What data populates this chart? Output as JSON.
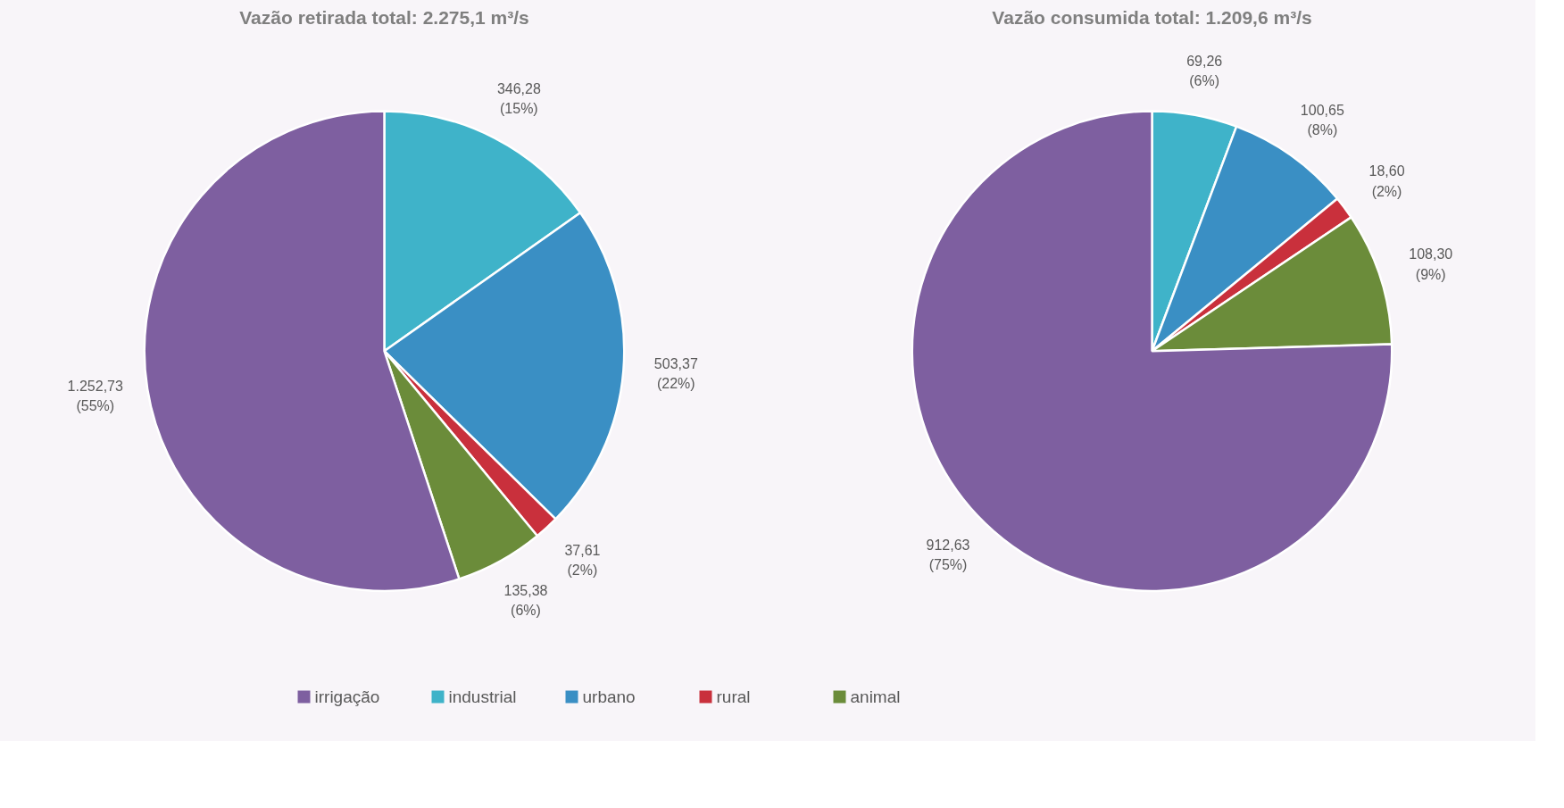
{
  "chart_data": [
    {
      "type": "pie",
      "title": "Vazão retirada total: 2.275,1 m³/s",
      "categories": [
        "irrigação",
        "industrial",
        "urbano",
        "rural",
        "animal"
      ],
      "values": [
        1252.73,
        346.28,
        503.37,
        37.61,
        135.38
      ],
      "value_labels": [
        "1.252,73\n(55%)",
        "346,28\n(15%)",
        "503,37\n(22%)",
        "37,61\n(2%)",
        "135,38\n(6%)"
      ],
      "colors": [
        "#7e5fa0",
        "#3fb3c9",
        "#3a8fc4",
        "#c9303c",
        "#6b8c3a"
      ],
      "legend": "bottom"
    },
    {
      "type": "pie",
      "title": "Vazão consumida total: 1.209,6 m³/s",
      "categories": [
        null,
        null,
        null,
        null,
        null
      ],
      "values": [
        912.63,
        69.26,
        100.65,
        18.6,
        108.3
      ],
      "value_labels": [
        "912,63\n(75%)",
        "69,26\n(6%)",
        "100,65\n(8%)",
        "18,60\n(2%)",
        "108,30\n(9%)"
      ],
      "colors": [
        "#7e5fa0",
        "#3fb3c9",
        "#3a8fc4",
        "#c9303c",
        "#6b8c3a"
      ]
    }
  ]
}
